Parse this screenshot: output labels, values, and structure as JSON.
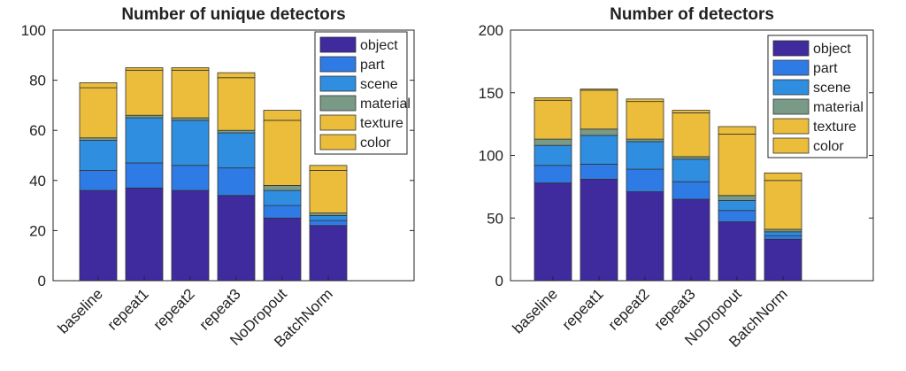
{
  "colors": {
    "object": "#3f2a9e",
    "part": "#2f7be6",
    "scene": "#2f8ee0",
    "material": "#7a9a88",
    "texture": "#ebbd3a",
    "color": "#ebbd3a",
    "axis": "#262626",
    "bar_edge": "#333333"
  },
  "chart_data": [
    {
      "type": "bar",
      "stacked": true,
      "title": "Number of unique detectors",
      "categories": [
        "baseline",
        "repeat1",
        "repeat2",
        "repeat3",
        "NoDropout",
        "BatchNorm"
      ],
      "ylim": [
        0,
        100
      ],
      "yticks": [
        0,
        20,
        40,
        60,
        80,
        100
      ],
      "grid": false,
      "legend_position": "top-right",
      "series": [
        {
          "name": "object",
          "values": [
            36,
            37,
            36,
            34,
            25,
            22
          ]
        },
        {
          "name": "part",
          "values": [
            8,
            10,
            10,
            11,
            5,
            2
          ]
        },
        {
          "name": "scene",
          "values": [
            12,
            18,
            18,
            14,
            6,
            2
          ]
        },
        {
          "name": "material",
          "values": [
            1,
            1,
            1,
            1,
            2,
            1
          ]
        },
        {
          "name": "texture",
          "values": [
            20,
            18,
            19,
            21,
            26,
            17
          ]
        },
        {
          "name": "color",
          "values": [
            2,
            1,
            1,
            2,
            4,
            2
          ]
        }
      ]
    },
    {
      "type": "bar",
      "stacked": true,
      "title": "Number of detectors",
      "categories": [
        "baseline",
        "repeat1",
        "repeat2",
        "repeat3",
        "NoDropout",
        "BatchNorm"
      ],
      "ylim": [
        0,
        200
      ],
      "yticks": [
        0,
        50,
        100,
        150,
        200
      ],
      "grid": false,
      "legend_position": "top-right",
      "series": [
        {
          "name": "object",
          "values": [
            78,
            81,
            71,
            65,
            47,
            33
          ]
        },
        {
          "name": "part",
          "values": [
            14,
            12,
            18,
            14,
            9,
            3
          ]
        },
        {
          "name": "scene",
          "values": [
            16,
            23,
            22,
            18,
            8,
            3
          ]
        },
        {
          "name": "material",
          "values": [
            5,
            5,
            2,
            2,
            4,
            2
          ]
        },
        {
          "name": "texture",
          "values": [
            31,
            31,
            30,
            35,
            49,
            39
          ]
        },
        {
          "name": "color",
          "values": [
            2,
            1,
            2,
            2,
            6,
            6
          ]
        }
      ]
    }
  ]
}
